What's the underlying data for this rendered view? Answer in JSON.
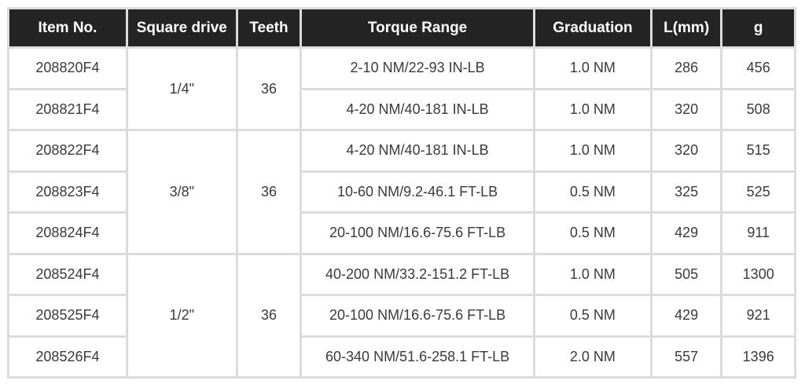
{
  "headers": [
    "Item No.",
    "Square drive",
    "Teeth",
    "Torque Range",
    "Graduation",
    "L(mm)",
    "g"
  ],
  "groups": [
    {
      "square_drive": "1/4\"",
      "teeth": "36",
      "rows": [
        {
          "item": "208820F4",
          "torque": "2-10 NM/22-93 IN-LB",
          "graduation": "1.0 NM",
          "length": "286",
          "weight": "456"
        },
        {
          "item": "208821F4",
          "torque": "4-20 NM/40-181 IN-LB",
          "graduation": "1.0 NM",
          "length": "320",
          "weight": "508"
        }
      ]
    },
    {
      "square_drive": "3/8\"",
      "teeth": "36",
      "rows": [
        {
          "item": "208822F4",
          "torque": "4-20 NM/40-181 IN-LB",
          "graduation": "1.0 NM",
          "length": "320",
          "weight": "515"
        },
        {
          "item": "208823F4",
          "torque": "10-60 NM/9.2-46.1 FT-LB",
          "graduation": "0.5 NM",
          "length": "325",
          "weight": "525"
        },
        {
          "item": "208824F4",
          "torque": "20-100 NM/16.6-75.6 FT-LB",
          "graduation": "0.5 NM",
          "length": "429",
          "weight": "911"
        }
      ]
    },
    {
      "square_drive": "1/2\"",
      "teeth": "36",
      "rows": [
        {
          "item": "208524F4",
          "torque": "40-200 NM/33.2-151.2 FT-LB",
          "graduation": "1.0 NM",
          "length": "505",
          "weight": "1300"
        },
        {
          "item": "208525F4",
          "torque": "20-100 NM/16.6-75.6 FT-LB",
          "graduation": "0.5 NM",
          "length": "429",
          "weight": "921"
        },
        {
          "item": "208526F4",
          "torque": "60-340 NM/51.6-258.1 FT-LB",
          "graduation": "2.0 NM",
          "length": "557",
          "weight": "1396"
        }
      ]
    }
  ]
}
